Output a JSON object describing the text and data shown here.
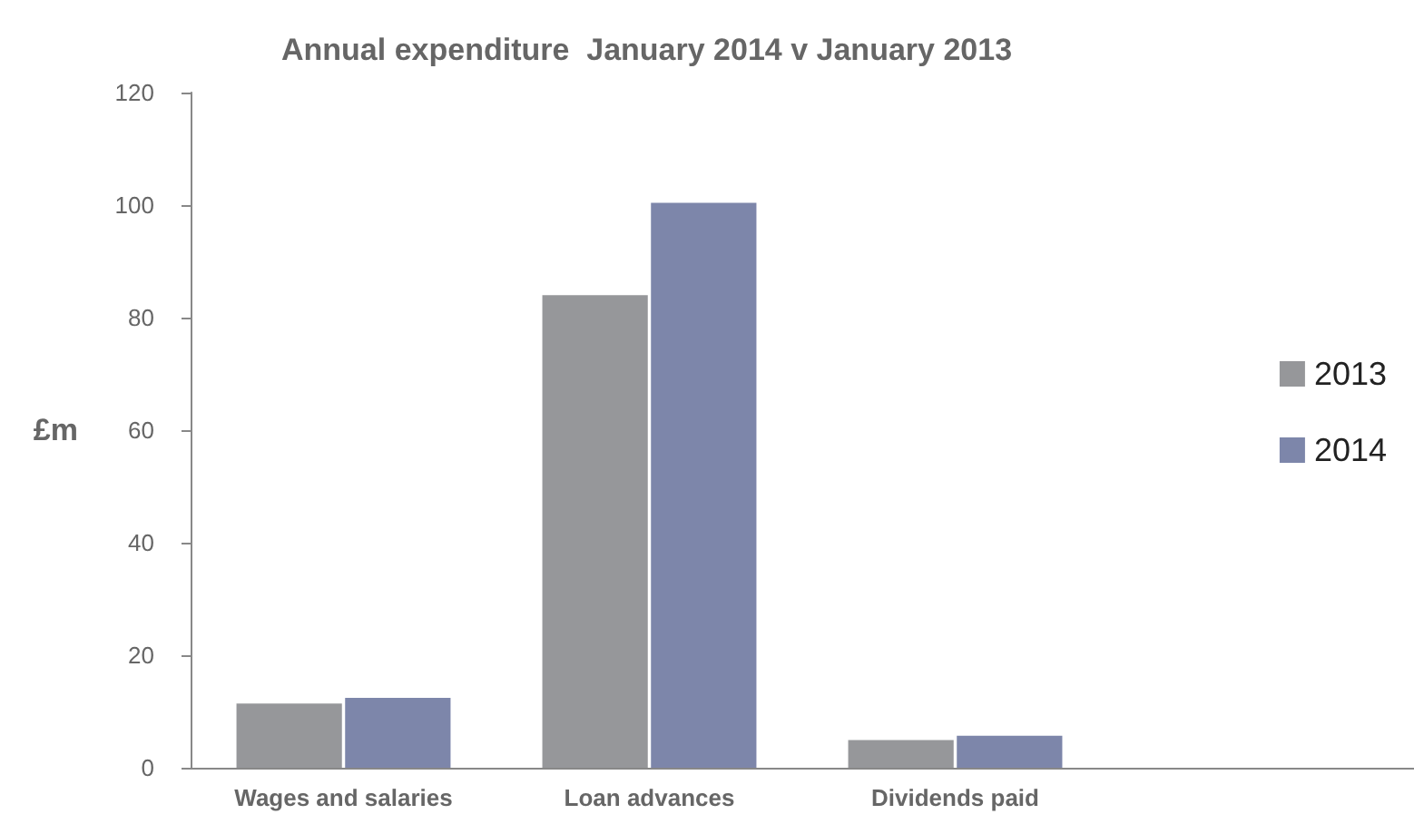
{
  "chart_data": {
    "type": "bar",
    "title": "Annual expenditure  January 2014 v January 2013",
    "ylabel": "£m",
    "categories": [
      "Wages and salaries",
      "Loan advances",
      "Dividends paid",
      null
    ],
    "series": [
      {
        "name": "2013",
        "color": "#96979a",
        "values": [
          11.4,
          84.0,
          4.9,
          null
        ]
      },
      {
        "name": "2014",
        "color": "#7d86aa",
        "values": [
          12.4,
          100.4,
          5.7,
          null
        ]
      }
    ],
    "ylim": [
      0,
      120
    ],
    "yticks": [
      0,
      20,
      40,
      60,
      80,
      100,
      120
    ],
    "grid": false,
    "legend": "right"
  }
}
